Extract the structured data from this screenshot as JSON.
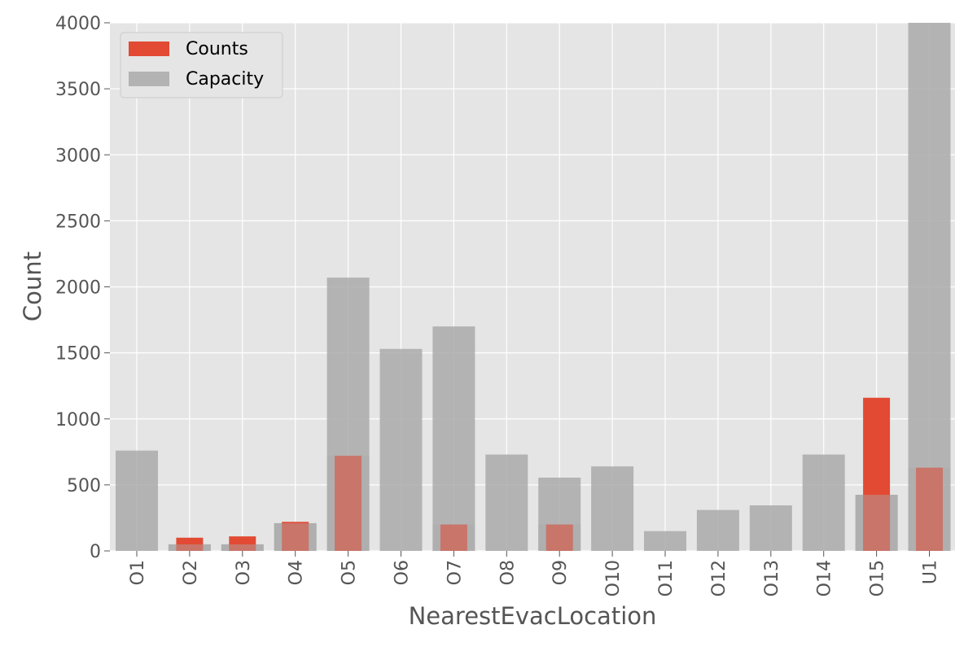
{
  "chart_data": {
    "type": "bar",
    "xlabel": "NearestEvacLocation",
    "ylabel": "Count",
    "ylim": [
      0,
      4000
    ],
    "yticks": [
      0,
      500,
      1000,
      1500,
      2000,
      2500,
      3000,
      3500,
      4000
    ],
    "grid": true,
    "legend_position": "top-left",
    "categories": [
      "O1",
      "O2",
      "O3",
      "O4",
      "O5",
      "O6",
      "O7",
      "O8",
      "O9",
      "O10",
      "O11",
      "O12",
      "O13",
      "O14",
      "O15",
      "U1"
    ],
    "series": [
      {
        "name": "Counts",
        "color": "#E24A33",
        "values": [
          0,
          100,
          110,
          220,
          720,
          0,
          200,
          0,
          200,
          0,
          0,
          0,
          0,
          0,
          1160,
          630
        ]
      },
      {
        "name": "Capacity",
        "color": "#AAAAAA",
        "opacity": 0.85,
        "values": [
          760,
          50,
          50,
          210,
          2070,
          1530,
          1700,
          730,
          555,
          640,
          150,
          310,
          345,
          730,
          425,
          4000
        ]
      }
    ]
  }
}
